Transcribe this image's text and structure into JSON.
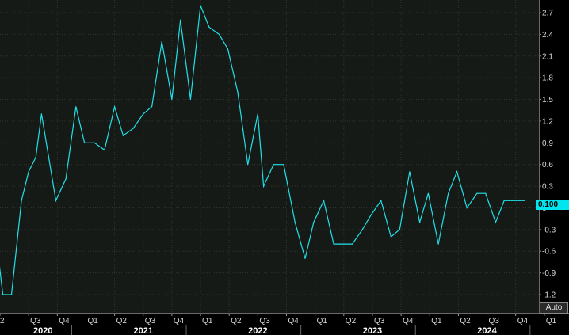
{
  "chart_data": {
    "type": "line",
    "title": "",
    "xlabel": "",
    "ylabel": "",
    "ylim": [
      -1.35,
      2.85
    ],
    "yticks": [
      2.7,
      2.4,
      2.1,
      1.8,
      1.5,
      1.2,
      0.9,
      0.6,
      0.3,
      0,
      -0.3,
      -0.6,
      -0.9,
      -1.2
    ],
    "ytick_labels": [
      "2.7",
      "2.4",
      "2.1",
      "1.8",
      "1.5",
      "1.2",
      "0.9",
      "0.6",
      "0.3",
      "0",
      "-0.3",
      "-0.6",
      "-0.9",
      "-1.2"
    ],
    "quarter_ticks": [
      "Q2",
      "Q3",
      "Q4",
      "Q1",
      "Q2",
      "Q3",
      "Q4",
      "Q1",
      "Q2",
      "Q3",
      "Q4",
      "Q1",
      "Q2",
      "Q3",
      "Q4",
      "Q1",
      "Q2",
      "Q3",
      "Q4",
      "Q1"
    ],
    "quarter_label_display": [
      "2",
      "Q3",
      "Q4",
      "Q1",
      "Q2",
      "Q3",
      "Q4",
      "Q1",
      "Q2",
      "Q3",
      "Q4",
      "Q1",
      "Q2",
      "Q3",
      "Q4",
      "Q1",
      "Q2",
      "Q3",
      "Q4",
      "Q1"
    ],
    "year_labels": [
      {
        "label": "2020",
        "quarter_index": 1.5
      },
      {
        "label": "2021",
        "quarter_index": 5
      },
      {
        "label": "2022",
        "quarter_index": 9
      },
      {
        "label": "2023",
        "quarter_index": 13
      },
      {
        "label": "2024",
        "quarter_index": 17
      }
    ],
    "x_start_quarter_index": -0.05,
    "x_end_quarter_index": 19.1,
    "grid": true,
    "series": [
      {
        "name": "",
        "color": "#20e0e8",
        "x": [
          -0.05,
          0.1,
          0.4,
          0.75,
          1,
          1.25,
          1.45,
          1.95,
          2.3,
          2.65,
          2.95,
          3.3,
          3.65,
          4,
          4.3,
          4.65,
          5,
          5.3,
          5.65,
          6,
          6.3,
          6.65,
          7,
          7.3,
          7.65,
          7.95,
          8.3,
          8.65,
          9,
          9.2,
          9.55,
          9.9,
          10.3,
          10.65,
          10.95,
          11.3,
          11.65,
          11.95,
          12.3,
          12.65,
          12.95,
          13.3,
          13.65,
          13.95,
          14.3,
          14.65,
          14.95,
          15.3,
          15.65,
          15.95,
          16.3,
          16.65,
          16.95,
          17.3,
          17.6,
          17.95,
          18.3
        ],
        "values": [
          -0.7,
          -1.2,
          -1.2,
          0.1,
          0.5,
          0.7,
          1.3,
          0.1,
          0.4,
          1.4,
          0.9,
          0.9,
          0.8,
          1.4,
          1.0,
          1.1,
          1.3,
          1.4,
          2.3,
          1.5,
          2.6,
          1.5,
          2.8,
          2.5,
          2.4,
          2.2,
          1.6,
          0.6,
          1.3,
          0.3,
          0.6,
          0.6,
          -0.2,
          -0.7,
          -0.2,
          0.1,
          -0.5,
          -0.5,
          -0.5,
          -0.3,
          -0.1,
          0.1,
          -0.4,
          -0.3,
          0.5,
          -0.2,
          0.2,
          -0.5,
          0.2,
          0.5,
          0.0,
          0.2,
          0.2,
          -0.2,
          0.1,
          0.1,
          0.1
        ]
      }
    ],
    "last_value_label": "0.100",
    "autoscale_label": "Auto"
  }
}
